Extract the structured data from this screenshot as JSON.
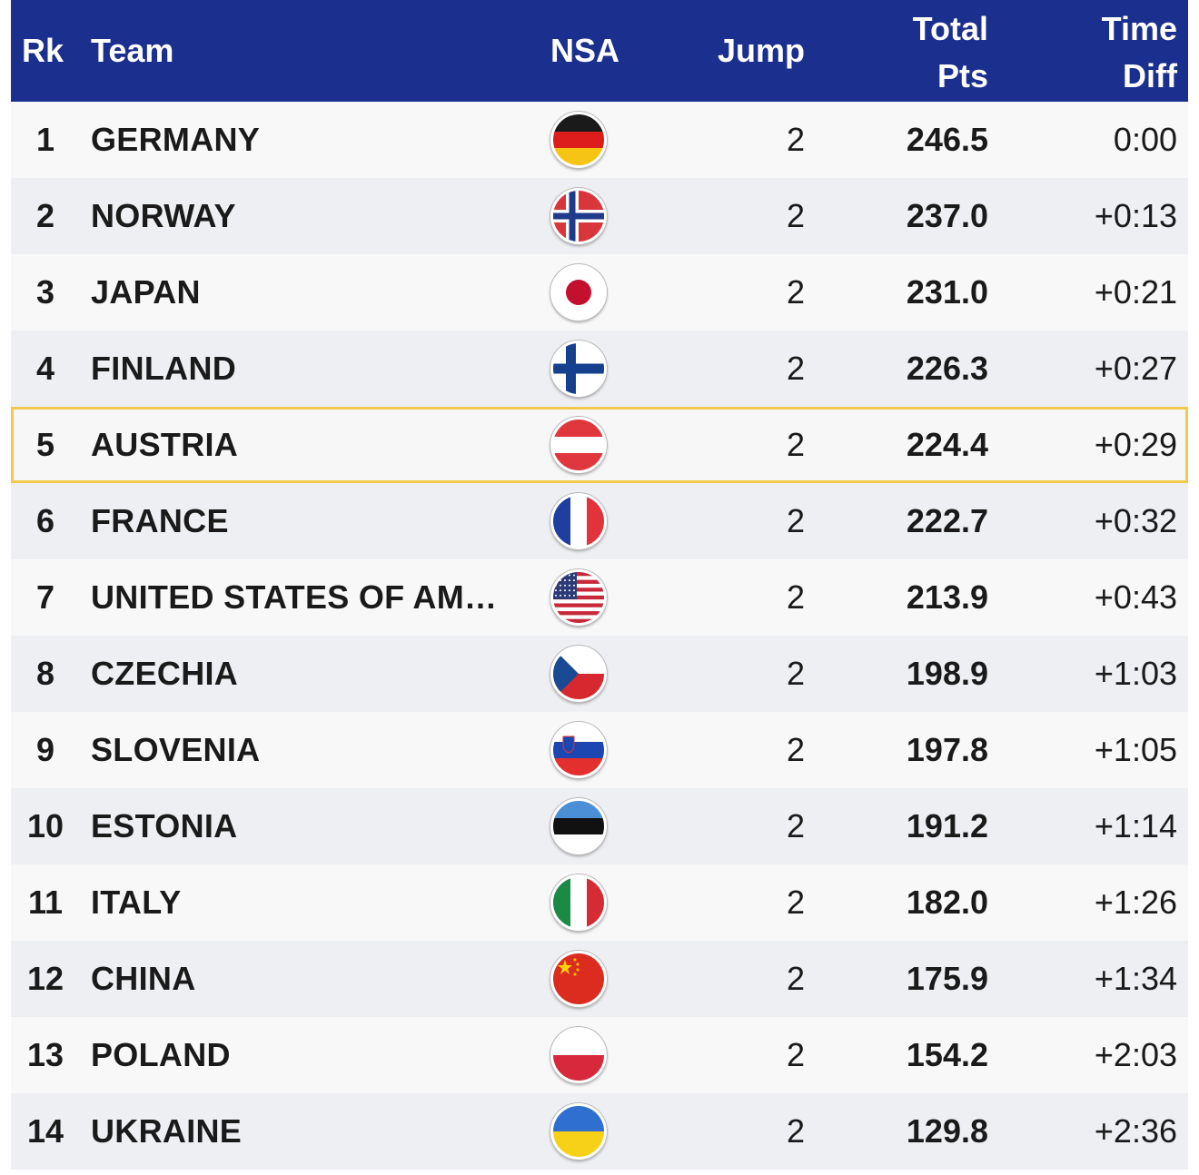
{
  "header": {
    "rk": "Rk",
    "team": "Team",
    "nsa": "NSA",
    "jump": "Jump",
    "total_line1": "Total",
    "total_line2": "Pts",
    "time_line1": "Time",
    "time_line2": "Diff"
  },
  "colors": {
    "header_bg": "#1b2f8e",
    "highlight_border": "#f2c94c"
  },
  "rows": [
    {
      "rk": "1",
      "team": "GERMANY",
      "flag": "germany-flag-icon",
      "jump": "2",
      "total": "246.5",
      "time": "0:00"
    },
    {
      "rk": "2",
      "team": "NORWAY",
      "flag": "norway-flag-icon",
      "jump": "2",
      "total": "237.0",
      "time": "+0:13"
    },
    {
      "rk": "3",
      "team": "JAPAN",
      "flag": "japan-flag-icon",
      "jump": "2",
      "total": "231.0",
      "time": "+0:21"
    },
    {
      "rk": "4",
      "team": "FINLAND",
      "flag": "finland-flag-icon",
      "jump": "2",
      "total": "226.3",
      "time": "+0:27"
    },
    {
      "rk": "5",
      "team": "AUSTRIA",
      "flag": "austria-flag-icon",
      "jump": "2",
      "total": "224.4",
      "time": "+0:29",
      "highlight": true
    },
    {
      "rk": "6",
      "team": "FRANCE",
      "flag": "france-flag-icon",
      "jump": "2",
      "total": "222.7",
      "time": "+0:32"
    },
    {
      "rk": "7",
      "team": "UNITED STATES OF AM…",
      "flag": "usa-flag-icon",
      "jump": "2",
      "total": "213.9",
      "time": "+0:43"
    },
    {
      "rk": "8",
      "team": "CZECHIA",
      "flag": "czechia-flag-icon",
      "jump": "2",
      "total": "198.9",
      "time": "+1:03"
    },
    {
      "rk": "9",
      "team": "SLOVENIA",
      "flag": "slovenia-flag-icon",
      "jump": "2",
      "total": "197.8",
      "time": "+1:05"
    },
    {
      "rk": "10",
      "team": "ESTONIA",
      "flag": "estonia-flag-icon",
      "jump": "2",
      "total": "191.2",
      "time": "+1:14"
    },
    {
      "rk": "11",
      "team": "ITALY",
      "flag": "italy-flag-icon",
      "jump": "2",
      "total": "182.0",
      "time": "+1:26"
    },
    {
      "rk": "12",
      "team": "CHINA",
      "flag": "china-flag-icon",
      "jump": "2",
      "total": "175.9",
      "time": "+1:34"
    },
    {
      "rk": "13",
      "team": "POLAND",
      "flag": "poland-flag-icon",
      "jump": "2",
      "total": "154.2",
      "time": "+2:03"
    },
    {
      "rk": "14",
      "team": "UKRAINE",
      "flag": "ukraine-flag-icon",
      "jump": "2",
      "total": "129.8",
      "time": "+2:36"
    }
  ]
}
